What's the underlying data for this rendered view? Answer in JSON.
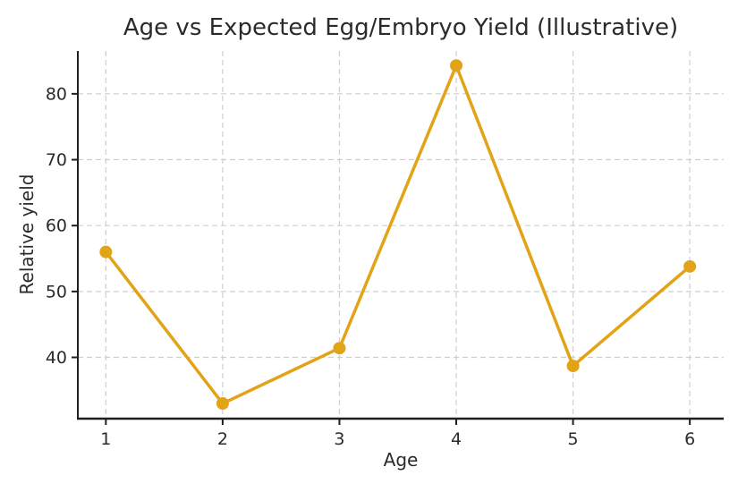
{
  "chart_data": {
    "type": "line",
    "title": "Age vs Expected Egg/Embryo Yield (Illustrative)",
    "xlabel": "Age",
    "ylabel": "Relative yield",
    "x": [
      1,
      2,
      3,
      4,
      5,
      6
    ],
    "y": [
      56,
      33,
      41.4,
      84.3,
      38.7,
      53.8
    ],
    "xticks": [
      "1",
      "2",
      "3",
      "4",
      "5",
      "6"
    ],
    "ytick_values": [
      40,
      50,
      60,
      70,
      80
    ],
    "yticks": [
      "40",
      "50",
      "60",
      "70",
      "80"
    ],
    "xlim": [
      0.76,
      6.29
    ],
    "ylim": [
      30.7,
      86.5
    ],
    "grid": true,
    "grid_style": "dashed",
    "legend": "none",
    "marker": "circle",
    "colors": {
      "line": "#E2A317",
      "marker": "#E2A317",
      "grid": "#cfcfcf",
      "axis": "#1f1f1f",
      "text": "#2b2b2b",
      "background": "#ffffff"
    }
  }
}
